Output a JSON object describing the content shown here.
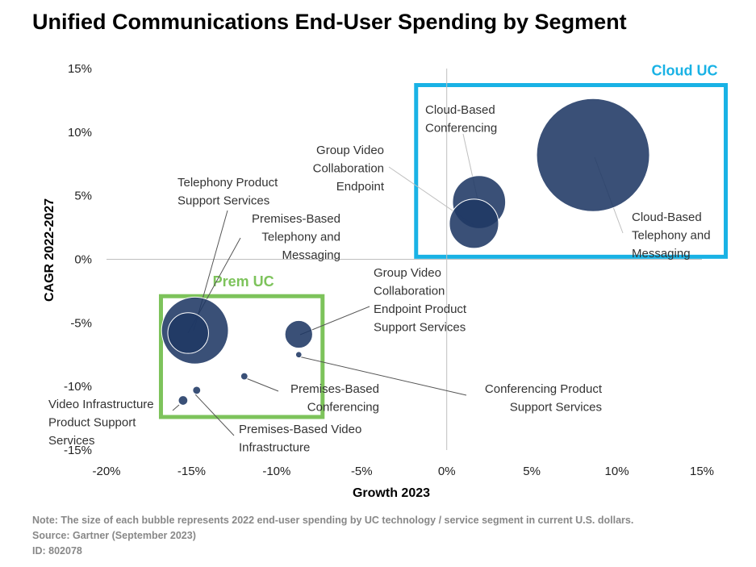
{
  "chart_data": {
    "type": "bubble",
    "title": "Unified Communications End-User Spending by Segment",
    "xlabel": "Growth 2023",
    "ylabel": "CAGR 2022-2027",
    "xlim": [
      -20,
      15
    ],
    "ylim": [
      -15,
      15
    ],
    "x_ticks": [
      "-20%",
      "-15%",
      "-10%",
      "-5%",
      "0%",
      "5%",
      "10%",
      "15%"
    ],
    "y_ticks": [
      "15%",
      "10%",
      "5%",
      "0%",
      "-5%",
      "-10%",
      "-15%"
    ],
    "bubble_color": "#1f3864",
    "points": [
      {
        "name": "Cloud-Based Telephony and Messaging",
        "x": 8.6,
        "y": 8.2,
        "size_rel": 1.0
      },
      {
        "name": "Cloud-Based Conferencing",
        "x": 1.9,
        "y": 4.5,
        "size_rel": 0.22
      },
      {
        "name": "Group Video Collaboration Endpoint",
        "x": 1.6,
        "y": 2.8,
        "size_rel": 0.19
      },
      {
        "name": "Telephony Product Support Services",
        "x": -14.8,
        "y": -5.6,
        "size_rel": 0.35
      },
      {
        "name": "Premises-Based Telephony and Messaging",
        "x": -15.2,
        "y": -5.8,
        "size_rel": 0.13
      },
      {
        "name": "Group Video Collaboration Endpoint Product Support Services",
        "x": -8.7,
        "y": -5.9,
        "size_rel": 0.06
      },
      {
        "name": "Conferencing Product Support Services",
        "x": -8.7,
        "y": -7.5,
        "size_rel": 0.003
      },
      {
        "name": "Premises-Based Conferencing",
        "x": -11.9,
        "y": -9.2,
        "size_rel": 0.004
      },
      {
        "name": "Premises-Based Video Infrastructure",
        "x": -14.7,
        "y": -10.3,
        "size_rel": 0.005
      },
      {
        "name": "Video Infrastructure Product Support Services",
        "x": -15.5,
        "y": -11.1,
        "size_rel": 0.007
      }
    ],
    "regions": [
      {
        "name": "Cloud UC",
        "color": "#19b2e5",
        "x_range": [
          -1.8,
          16.4
        ],
        "y_range": [
          0.2,
          13.7
        ]
      },
      {
        "name": "Prem UC",
        "color": "#7dc35b",
        "x_range": [
          -16.8,
          -7.3
        ],
        "y_range": [
          -12.4,
          -2.9
        ]
      }
    ]
  },
  "notes": {
    "note": "Note: The size of each bubble represents 2022 end-user spending by UC technology / service segment in current U.S. dollars.",
    "source": "Source: Gartner (September 2023)",
    "id": "ID: 802078"
  }
}
